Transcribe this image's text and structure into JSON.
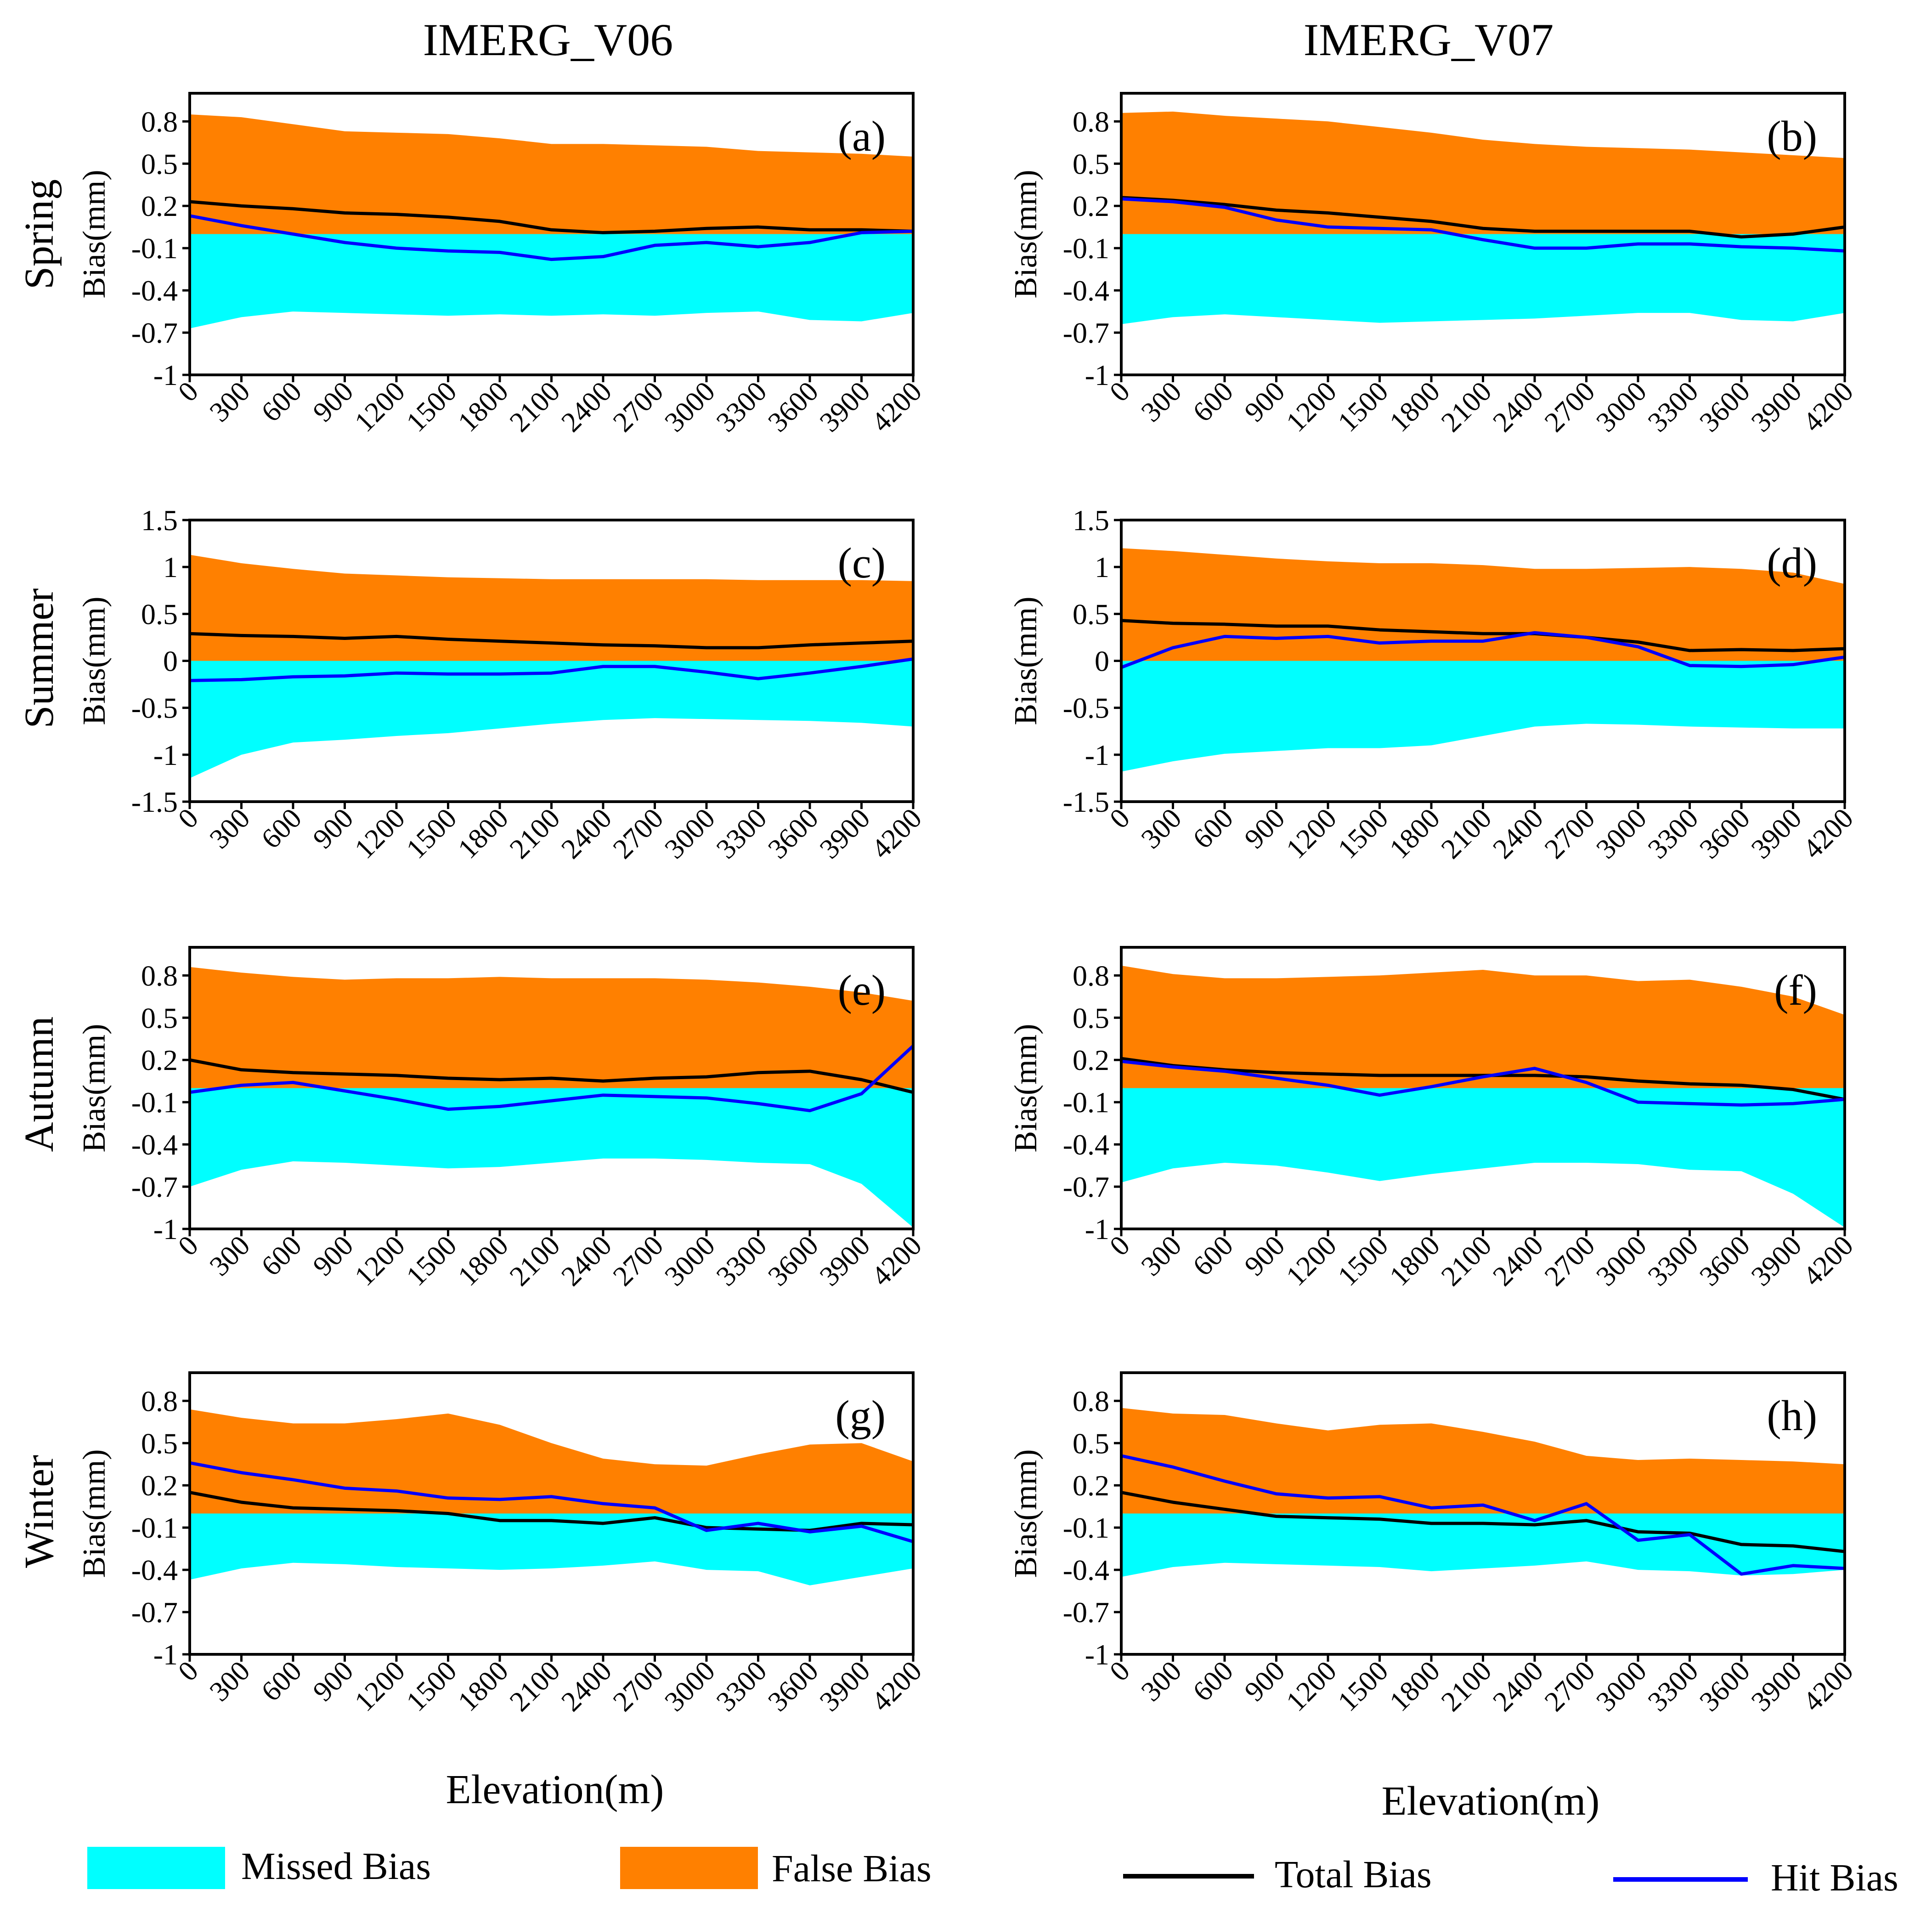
{
  "figure": {
    "col_titles": [
      "IMERG_V06",
      "IMERG_V07"
    ],
    "row_titles": [
      "Spring",
      "Summer",
      "Autumn",
      "Winter"
    ],
    "xlabel": "Elevation(m)",
    "colors": {
      "missed": "#00FFFF",
      "false": "#FF8000",
      "total": "#000000",
      "hit": "#0000FF"
    }
  },
  "legend": {
    "missed_label": "Missed  Bias",
    "false_label": "False  Bias",
    "total_label": "Total  Bias",
    "hit_label": "Hit  Bias"
  },
  "chart_data": [
    {
      "type": "area",
      "label": "(a)",
      "ylabel": "Bias(mm)",
      "x": [
        0,
        300,
        600,
        900,
        1200,
        1500,
        1800,
        2100,
        2400,
        2700,
        3000,
        3300,
        3600,
        3900,
        4200
      ],
      "xticks": [
        "0",
        "300",
        "600",
        "900",
        "1200",
        "1500",
        "1800",
        "2100",
        "2400",
        "2700",
        "3000",
        "3300",
        "3600",
        "3900",
        "4200"
      ],
      "ylim": [
        -1,
        1
      ],
      "yticks": [
        0.8,
        0.5,
        0.2,
        -0.1,
        -0.4,
        -0.7,
        -1
      ],
      "ytick_labels": [
        "0.8",
        "0.5",
        "0.2",
        "-0.1",
        "-0.4",
        "-0.7",
        "-1"
      ],
      "series": [
        {
          "name": "Missed Bias",
          "values": [
            -0.67,
            -0.59,
            -0.55,
            -0.56,
            -0.57,
            -0.58,
            -0.57,
            -0.58,
            -0.57,
            -0.58,
            -0.56,
            -0.55,
            -0.61,
            -0.62,
            -0.56
          ]
        },
        {
          "name": "False Bias",
          "values": [
            0.85,
            0.83,
            0.78,
            0.73,
            0.72,
            0.71,
            0.68,
            0.64,
            0.64,
            0.63,
            0.62,
            0.59,
            0.58,
            0.57,
            0.55
          ]
        },
        {
          "name": "Total Bias",
          "values": [
            0.23,
            0.2,
            0.18,
            0.15,
            0.14,
            0.12,
            0.09,
            0.03,
            0.01,
            0.02,
            0.04,
            0.05,
            0.03,
            0.03,
            0.02
          ]
        },
        {
          "name": "Hit Bias",
          "values": [
            0.13,
            0.06,
            0.0,
            -0.06,
            -0.1,
            -0.12,
            -0.13,
            -0.18,
            -0.16,
            -0.08,
            -0.06,
            -0.09,
            -0.06,
            0.01,
            0.02
          ]
        }
      ]
    },
    {
      "type": "area",
      "label": "(b)",
      "ylabel": "Bias(mm)",
      "x": [
        0,
        300,
        600,
        900,
        1200,
        1500,
        1800,
        2100,
        2400,
        2700,
        3000,
        3300,
        3600,
        3900,
        4200
      ],
      "xticks": [
        "0",
        "300",
        "600",
        "900",
        "1200",
        "1500",
        "1800",
        "2100",
        "2400",
        "2700",
        "3000",
        "3300",
        "3600",
        "3900",
        "4200"
      ],
      "ylim": [
        -1,
        1
      ],
      "yticks": [
        0.8,
        0.5,
        0.2,
        -0.1,
        -0.4,
        -0.7,
        -1
      ],
      "ytick_labels": [
        "0.8",
        "0.5",
        "0.2",
        "-0.1",
        "-0.4",
        "-0.7",
        "-1"
      ],
      "series": [
        {
          "name": "Missed Bias",
          "values": [
            -0.64,
            -0.59,
            -0.57,
            -0.59,
            -0.61,
            -0.63,
            -0.62,
            -0.61,
            -0.6,
            -0.58,
            -0.56,
            -0.56,
            -0.61,
            -0.62,
            -0.56
          ]
        },
        {
          "name": "False Bias",
          "values": [
            0.86,
            0.87,
            0.84,
            0.82,
            0.8,
            0.76,
            0.72,
            0.67,
            0.64,
            0.62,
            0.61,
            0.6,
            0.58,
            0.56,
            0.54
          ]
        },
        {
          "name": "Total Bias",
          "values": [
            0.26,
            0.24,
            0.21,
            0.17,
            0.15,
            0.12,
            0.09,
            0.04,
            0.02,
            0.02,
            0.02,
            0.02,
            -0.02,
            0.0,
            0.05
          ]
        },
        {
          "name": "Hit Bias",
          "values": [
            0.25,
            0.23,
            0.19,
            0.1,
            0.05,
            0.04,
            0.03,
            -0.04,
            -0.1,
            -0.1,
            -0.07,
            -0.07,
            -0.09,
            -0.1,
            -0.12
          ]
        }
      ]
    },
    {
      "type": "area",
      "label": "(c)",
      "ylabel": "Bias(mm)",
      "x": [
        0,
        300,
        600,
        900,
        1200,
        1500,
        1800,
        2100,
        2400,
        2700,
        3000,
        3300,
        3600,
        3900,
        4200
      ],
      "xticks": [
        "0",
        "300",
        "600",
        "900",
        "1200",
        "1500",
        "1800",
        "2100",
        "2400",
        "2700",
        "3000",
        "3300",
        "3600",
        "3900",
        "4200"
      ],
      "ylim": [
        -1.5,
        1.5
      ],
      "yticks": [
        1.5,
        1,
        0.5,
        0,
        -0.5,
        -1,
        -1.5
      ],
      "ytick_labels": [
        "1.5",
        "1",
        "0.5",
        "0",
        "-0.5",
        "-1",
        "-1.5"
      ],
      "series": [
        {
          "name": "Missed Bias",
          "values": [
            -1.25,
            -1.0,
            -0.87,
            -0.84,
            -0.8,
            -0.77,
            -0.72,
            -0.67,
            -0.63,
            -0.61,
            -0.62,
            -0.63,
            -0.64,
            -0.66,
            -0.7
          ]
        },
        {
          "name": "False Bias",
          "values": [
            1.13,
            1.04,
            0.98,
            0.93,
            0.91,
            0.89,
            0.88,
            0.87,
            0.87,
            0.87,
            0.87,
            0.86,
            0.86,
            0.86,
            0.85
          ]
        },
        {
          "name": "Total Bias",
          "values": [
            0.29,
            0.27,
            0.26,
            0.24,
            0.26,
            0.23,
            0.21,
            0.19,
            0.17,
            0.16,
            0.14,
            0.14,
            0.17,
            0.19,
            0.21
          ]
        },
        {
          "name": "Hit Bias",
          "values": [
            -0.21,
            -0.2,
            -0.17,
            -0.16,
            -0.13,
            -0.14,
            -0.14,
            -0.13,
            -0.06,
            -0.06,
            -0.12,
            -0.19,
            -0.13,
            -0.06,
            0.02
          ]
        }
      ]
    },
    {
      "type": "area",
      "label": "(d)",
      "ylabel": "Bias(mm)",
      "x": [
        0,
        300,
        600,
        900,
        1200,
        1500,
        1800,
        2100,
        2400,
        2700,
        3000,
        3300,
        3600,
        3900,
        4200
      ],
      "xticks": [
        "0",
        "300",
        "600",
        "900",
        "1200",
        "1500",
        "1800",
        "2100",
        "2400",
        "2700",
        "3000",
        "3300",
        "3600",
        "3900",
        "4200"
      ],
      "ylim": [
        -1.5,
        1.5
      ],
      "yticks": [
        1.5,
        1,
        0.5,
        0,
        -0.5,
        -1,
        -1.5
      ],
      "ytick_labels": [
        "1.5",
        "1",
        "0.5",
        "0",
        "-0.5",
        "-1",
        "-1.5"
      ],
      "series": [
        {
          "name": "Missed Bias",
          "values": [
            -1.18,
            -1.07,
            -0.99,
            -0.96,
            -0.93,
            -0.93,
            -0.9,
            -0.8,
            -0.7,
            -0.67,
            -0.68,
            -0.7,
            -0.71,
            -0.72,
            -0.72
          ]
        },
        {
          "name": "False Bias",
          "values": [
            1.2,
            1.17,
            1.13,
            1.09,
            1.06,
            1.04,
            1.04,
            1.02,
            0.98,
            0.98,
            0.99,
            1.0,
            0.98,
            0.94,
            0.82
          ]
        },
        {
          "name": "Total Bias",
          "values": [
            0.43,
            0.4,
            0.39,
            0.37,
            0.37,
            0.33,
            0.31,
            0.29,
            0.29,
            0.25,
            0.2,
            0.11,
            0.12,
            0.11,
            0.13
          ]
        },
        {
          "name": "Hit Bias",
          "values": [
            -0.07,
            0.14,
            0.26,
            0.24,
            0.26,
            0.19,
            0.21,
            0.21,
            0.3,
            0.25,
            0.15,
            -0.05,
            -0.06,
            -0.04,
            0.04
          ]
        }
      ]
    },
    {
      "type": "area",
      "label": "(e)",
      "ylabel": "Bias(mm)",
      "x": [
        0,
        300,
        600,
        900,
        1200,
        1500,
        1800,
        2100,
        2400,
        2700,
        3000,
        3300,
        3600,
        3900,
        4200
      ],
      "xticks": [
        "0",
        "300",
        "600",
        "900",
        "1200",
        "1500",
        "1800",
        "2100",
        "2400",
        "2700",
        "3000",
        "3300",
        "3600",
        "3900",
        "4200"
      ],
      "ylim": [
        -1,
        1
      ],
      "yticks": [
        0.8,
        0.5,
        0.2,
        -0.1,
        -0.4,
        -0.7,
        -1
      ],
      "ytick_labels": [
        "0.8",
        "0.5",
        "0.2",
        "-0.1",
        "-0.4",
        "-0.7",
        "-1"
      ],
      "series": [
        {
          "name": "Missed Bias",
          "values": [
            -0.7,
            -0.58,
            -0.52,
            -0.53,
            -0.55,
            -0.57,
            -0.56,
            -0.53,
            -0.5,
            -0.5,
            -0.51,
            -0.53,
            -0.54,
            -0.68,
            -0.99
          ]
        },
        {
          "name": "False Bias",
          "values": [
            0.86,
            0.82,
            0.79,
            0.77,
            0.78,
            0.78,
            0.79,
            0.78,
            0.78,
            0.78,
            0.77,
            0.75,
            0.72,
            0.68,
            0.62
          ]
        },
        {
          "name": "Total Bias",
          "values": [
            0.2,
            0.13,
            0.11,
            0.1,
            0.09,
            0.07,
            0.06,
            0.07,
            0.05,
            0.07,
            0.08,
            0.11,
            0.12,
            0.06,
            -0.03
          ]
        },
        {
          "name": "Hit Bias",
          "values": [
            -0.03,
            0.02,
            0.04,
            -0.02,
            -0.08,
            -0.15,
            -0.13,
            -0.09,
            -0.05,
            -0.06,
            -0.07,
            -0.11,
            -0.16,
            -0.04,
            0.3
          ]
        }
      ]
    },
    {
      "type": "area",
      "label": "(f)",
      "ylabel": "Bias(mm)",
      "x": [
        0,
        300,
        600,
        900,
        1200,
        1500,
        1800,
        2100,
        2400,
        2700,
        3000,
        3300,
        3600,
        3900,
        4200
      ],
      "xticks": [
        "0",
        "300",
        "600",
        "900",
        "1200",
        "1500",
        "1800",
        "2100",
        "2400",
        "2700",
        "3000",
        "3300",
        "3600",
        "3900",
        "4200"
      ],
      "ylim": [
        -1,
        1
      ],
      "yticks": [
        0.8,
        0.5,
        0.2,
        -0.1,
        -0.4,
        -0.7,
        -1
      ],
      "ytick_labels": [
        "0.8",
        "0.5",
        "0.2",
        "-0.1",
        "-0.4",
        "-0.7",
        "-1"
      ],
      "series": [
        {
          "name": "Missed Bias",
          "values": [
            -0.67,
            -0.57,
            -0.53,
            -0.55,
            -0.6,
            -0.66,
            -0.61,
            -0.57,
            -0.53,
            -0.53,
            -0.54,
            -0.58,
            -0.59,
            -0.75,
            -0.99
          ]
        },
        {
          "name": "False Bias",
          "values": [
            0.87,
            0.81,
            0.78,
            0.78,
            0.79,
            0.8,
            0.82,
            0.84,
            0.8,
            0.8,
            0.76,
            0.77,
            0.72,
            0.65,
            0.52
          ]
        },
        {
          "name": "Total Bias",
          "values": [
            0.21,
            0.16,
            0.13,
            0.11,
            0.1,
            0.09,
            0.09,
            0.09,
            0.09,
            0.08,
            0.05,
            0.03,
            0.02,
            -0.01,
            -0.08
          ]
        },
        {
          "name": "Hit Bias",
          "values": [
            0.19,
            0.15,
            0.12,
            0.07,
            0.02,
            -0.05,
            0.01,
            0.08,
            0.14,
            0.04,
            -0.1,
            -0.11,
            -0.12,
            -0.11,
            -0.08
          ]
        }
      ]
    },
    {
      "type": "area",
      "label": "(g)",
      "ylabel": "Bias(mm)",
      "x": [
        0,
        300,
        600,
        900,
        1200,
        1500,
        1800,
        2100,
        2400,
        2700,
        3000,
        3300,
        3600,
        3900,
        4200
      ],
      "xticks": [
        "0",
        "300",
        "600",
        "900",
        "1200",
        "1500",
        "1800",
        "2100",
        "2400",
        "2700",
        "3000",
        "3300",
        "3600",
        "3900",
        "4200"
      ],
      "ylim": [
        -1,
        1
      ],
      "yticks": [
        0.8,
        0.5,
        0.2,
        -0.1,
        -0.4,
        -0.7,
        -1
      ],
      "ytick_labels": [
        "0.8",
        "0.5",
        "0.2",
        "-0.1",
        "-0.4",
        "-0.7",
        "-1"
      ],
      "series": [
        {
          "name": "Missed Bias",
          "values": [
            -0.47,
            -0.39,
            -0.35,
            -0.36,
            -0.38,
            -0.39,
            -0.4,
            -0.39,
            -0.37,
            -0.34,
            -0.4,
            -0.41,
            -0.51,
            -0.45,
            -0.39
          ]
        },
        {
          "name": "False Bias",
          "values": [
            0.74,
            0.68,
            0.64,
            0.64,
            0.67,
            0.71,
            0.63,
            0.5,
            0.39,
            0.35,
            0.34,
            0.42,
            0.49,
            0.5,
            0.37
          ]
        },
        {
          "name": "Total Bias",
          "values": [
            0.15,
            0.08,
            0.04,
            0.03,
            0.02,
            0.0,
            -0.05,
            -0.05,
            -0.07,
            -0.03,
            -0.1,
            -0.11,
            -0.12,
            -0.07,
            -0.08
          ]
        },
        {
          "name": "Hit Bias",
          "values": [
            0.36,
            0.29,
            0.24,
            0.18,
            0.16,
            0.11,
            0.1,
            0.12,
            0.07,
            0.04,
            -0.12,
            -0.07,
            -0.13,
            -0.09,
            -0.2
          ]
        }
      ]
    },
    {
      "type": "area",
      "label": "(h)",
      "ylabel": "Bias(mm)",
      "x": [
        0,
        300,
        600,
        900,
        1200,
        1500,
        1800,
        2100,
        2400,
        2700,
        3000,
        3300,
        3600,
        3900,
        4200
      ],
      "xticks": [
        "0",
        "300",
        "600",
        "900",
        "1200",
        "1500",
        "1800",
        "2100",
        "2400",
        "2700",
        "3000",
        "3300",
        "3600",
        "3900",
        "4200"
      ],
      "ylim": [
        -1,
        1
      ],
      "yticks": [
        0.8,
        0.5,
        0.2,
        -0.1,
        -0.4,
        -0.7,
        -1
      ],
      "ytick_labels": [
        "0.8",
        "0.5",
        "0.2",
        "-0.1",
        "-0.4",
        "-0.7",
        "-1"
      ],
      "series": [
        {
          "name": "Missed Bias",
          "values": [
            -0.45,
            -0.38,
            -0.35,
            -0.36,
            -0.37,
            -0.38,
            -0.41,
            -0.39,
            -0.37,
            -0.34,
            -0.4,
            -0.41,
            -0.44,
            -0.43,
            -0.4
          ]
        },
        {
          "name": "False Bias",
          "values": [
            0.75,
            0.71,
            0.7,
            0.64,
            0.59,
            0.63,
            0.64,
            0.58,
            0.51,
            0.41,
            0.38,
            0.39,
            0.38,
            0.37,
            0.35
          ]
        },
        {
          "name": "Total Bias",
          "values": [
            0.15,
            0.08,
            0.03,
            -0.02,
            -0.03,
            -0.04,
            -0.07,
            -0.07,
            -0.08,
            -0.05,
            -0.13,
            -0.14,
            -0.22,
            -0.23,
            -0.27
          ]
        },
        {
          "name": "Hit Bias",
          "values": [
            0.41,
            0.33,
            0.23,
            0.14,
            0.11,
            0.12,
            0.04,
            0.06,
            -0.05,
            0.07,
            -0.19,
            -0.15,
            -0.43,
            -0.37,
            -0.39
          ]
        }
      ]
    }
  ]
}
